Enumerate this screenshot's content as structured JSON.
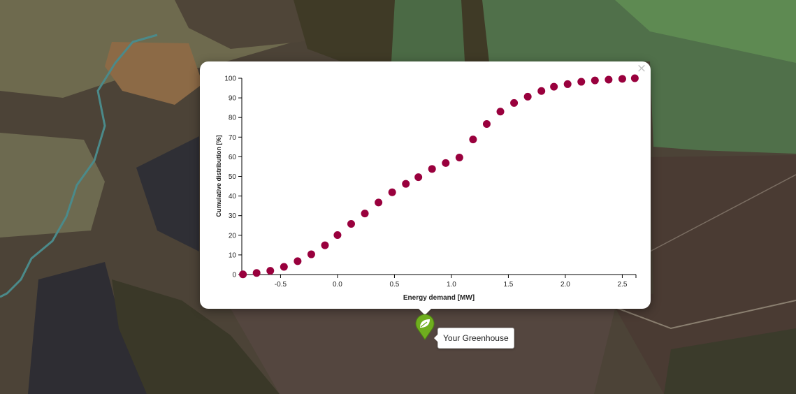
{
  "map": {
    "marker_icon": "leaf-icon",
    "marker_color": "#6fae1e",
    "marker_label": "Your Greenhouse"
  },
  "popup": {
    "close_label": "×"
  },
  "chart_data": {
    "type": "scatter",
    "title": "",
    "xlabel": "Energy demand [MW]",
    "ylabel": "Cumulative distribution [%]",
    "xlim": [
      -0.84,
      2.62
    ],
    "ylim": [
      0,
      100
    ],
    "xticks": [
      -0.5,
      0.0,
      0.5,
      1.0,
      1.5,
      2.0,
      2.5
    ],
    "xtick_labels": [
      "-0.5",
      "0.0",
      "0.5",
      "1.0",
      "1.5",
      "2.0",
      "2.5"
    ],
    "yticks": [
      0,
      10,
      20,
      30,
      40,
      50,
      60,
      70,
      80,
      90,
      100
    ],
    "ytick_labels": [
      "0",
      "10",
      "20",
      "30",
      "40",
      "50",
      "60",
      "70",
      "80",
      "90",
      "100"
    ],
    "marker_color": "#99003d",
    "grid": false,
    "series": [
      {
        "x": [
          -0.83,
          -0.71,
          -0.59,
          -0.47,
          -0.35,
          -0.23,
          -0.11,
          0.0,
          0.12,
          0.24,
          0.36,
          0.48,
          0.6,
          0.71,
          0.83,
          0.95,
          1.07,
          1.19,
          1.31,
          1.43,
          1.55,
          1.67,
          1.79,
          1.9,
          2.02,
          2.14,
          2.26,
          2.38,
          2.5,
          2.61
        ],
        "y": [
          0.1,
          0.8,
          1.9,
          3.9,
          6.8,
          10.3,
          14.9,
          20.1,
          25.8,
          31.1,
          36.7,
          41.9,
          46.2,
          49.6,
          53.8,
          56.8,
          59.6,
          68.8,
          76.7,
          83.0,
          87.4,
          90.6,
          93.5,
          95.7,
          97.0,
          98.2,
          98.9,
          99.3,
          99.7,
          100.0
        ]
      }
    ]
  }
}
